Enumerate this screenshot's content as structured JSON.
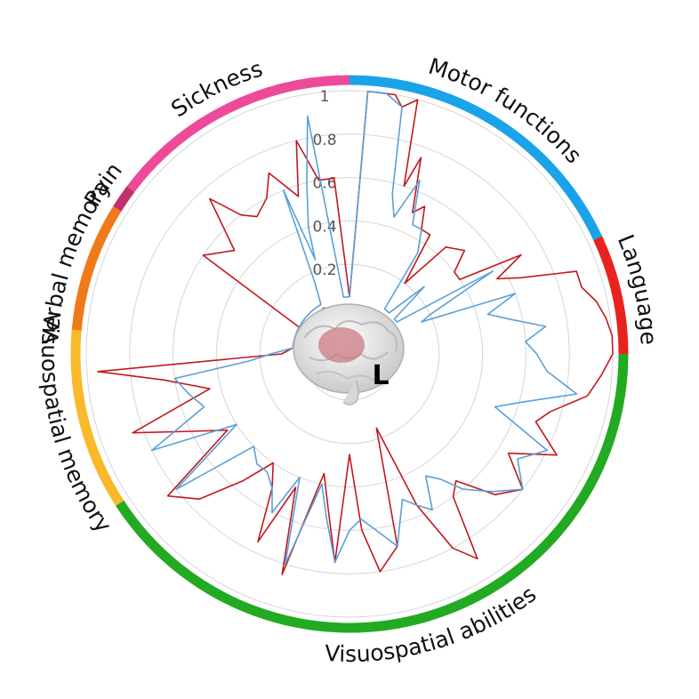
{
  "chart_data": {
    "type": "radar",
    "radial_axis": {
      "ticks": [
        "0",
        "0.2",
        "0.4",
        "0.6",
        "0.8",
        "1"
      ],
      "range": [
        0,
        1
      ]
    },
    "categories": [
      {
        "label": "Motor functions",
        "color": "#1aa3e8",
        "start_deg": 0,
        "end_deg": 65
      },
      {
        "label": "Language",
        "color": "#e8231f",
        "start_deg": 65,
        "end_deg": 90
      },
      {
        "label": "Visuospatial abilities",
        "color": "#22aa22",
        "start_deg": 90,
        "end_deg": 237
      },
      {
        "label": "Visuospatial memory",
        "color": "#f8b92a",
        "start_deg": 237,
        "end_deg": 275
      },
      {
        "label": "Verbal memory",
        "color": "#f07a1a",
        "start_deg": 275,
        "end_deg": 302
      },
      {
        "label": "Pain",
        "color": "#c0306d",
        "start_deg": 302,
        "end_deg": 307
      },
      {
        "label": "Sickness",
        "color": "#ee4a9a",
        "start_deg": 307,
        "end_deg": 360
      }
    ],
    "hemisphere_label": "L",
    "series": [
      {
        "color": "#c0191d",
        "points": [
          [
            0,
            0.05
          ],
          [
            4,
            1.0
          ],
          [
            10,
            1.0
          ],
          [
            12,
            0.95
          ],
          [
            15,
            1.0
          ],
          [
            18,
            0.6
          ],
          [
            20,
            0.75
          ],
          [
            24,
            0.5
          ],
          [
            27,
            0.55
          ],
          [
            30,
            0.45
          ],
          [
            34,
            0.45
          ],
          [
            38,
            0.2
          ],
          [
            42,
            0.45
          ],
          [
            48,
            0.5
          ],
          [
            52,
            0.4
          ],
          [
            56,
            0.4
          ],
          [
            60,
            0.7
          ],
          [
            63,
            0.55
          ],
          [
            66,
            0.65
          ],
          [
            70,
            0.9
          ],
          [
            74,
            0.9
          ],
          [
            78,
            0.95
          ],
          [
            82,
            0.98
          ],
          [
            86,
            1.0
          ],
          [
            90,
            1.0
          ],
          [
            95,
            0.95
          ],
          [
            100,
            0.9
          ],
          [
            106,
            0.75
          ],
          [
            110,
            0.7
          ],
          [
            116,
            0.85
          ],
          [
            122,
            0.65
          ],
          [
            128,
            0.8
          ],
          [
            134,
            0.72
          ],
          [
            140,
            0.55
          ],
          [
            144,
            0.6
          ],
          [
            148,
            0.9
          ],
          [
            152,
            0.8
          ],
          [
            156,
            0.55
          ],
          [
            160,
            0.15
          ],
          [
            166,
            0.7
          ],
          [
            172,
            0.8
          ],
          [
            176,
            0.6
          ],
          [
            180,
            0.25
          ],
          [
            184,
            0.75
          ],
          [
            188,
            0.5
          ],
          [
            192,
            0.35
          ],
          [
            197,
            0.85
          ],
          [
            202,
            0.45
          ],
          [
            206,
            0.75
          ],
          [
            210,
            0.5
          ],
          [
            215,
            0.4
          ],
          [
            220,
            0.55
          ],
          [
            226,
            0.75
          ],
          [
            232,
            0.85
          ],
          [
            238,
            0.45
          ],
          [
            244,
            0.6
          ],
          [
            250,
            0.85
          ],
          [
            256,
            0.45
          ],
          [
            262,
            0.65
          ],
          [
            266,
            0.95
          ],
          [
            270,
            0.1
          ],
          [
            276,
            0.05
          ],
          [
            282,
            0.05
          ],
          [
            286,
            0.05
          ],
          [
            292,
            0.05
          ],
          [
            298,
            0.05
          ],
          [
            304,
            0.6
          ],
          [
            312,
            0.5
          ],
          [
            318,
            0.75
          ],
          [
            322,
            0.6
          ],
          [
            326,
            0.55
          ],
          [
            332,
            0.6
          ],
          [
            336,
            0.7
          ],
          [
            342,
            0.55
          ],
          [
            346,
            0.8
          ],
          [
            350,
            0.6
          ],
          [
            355,
            0.6
          ],
          [
            360,
            0.05
          ]
        ]
      },
      {
        "color": "#5aa0d8",
        "points": [
          [
            0,
            0.05
          ],
          [
            4,
            1.0
          ],
          [
            8,
            1.0
          ],
          [
            12,
            0.95
          ],
          [
            15,
            0.55
          ],
          [
            18,
            0.45
          ],
          [
            22,
            0.65
          ],
          [
            26,
            0.45
          ],
          [
            30,
            0.45
          ],
          [
            34,
            0.35
          ],
          [
            38,
            0.05
          ],
          [
            44,
            0.05
          ],
          [
            48,
            0.25
          ],
          [
            52,
            0.05
          ],
          [
            56,
            0.05
          ],
          [
            60,
            0.55
          ],
          [
            64,
            0.2
          ],
          [
            66,
            0.15
          ],
          [
            70,
            0.6
          ],
          [
            74,
            0.45
          ],
          [
            78,
            0.55
          ],
          [
            82,
            0.7
          ],
          [
            86,
            0.6
          ],
          [
            90,
            0.65
          ],
          [
            95,
            0.7
          ],
          [
            100,
            0.85
          ],
          [
            106,
            0.6
          ],
          [
            110,
            0.5
          ],
          [
            116,
            0.8
          ],
          [
            122,
            0.7
          ],
          [
            128,
            0.8
          ],
          [
            134,
            0.7
          ],
          [
            140,
            0.6
          ],
          [
            144,
            0.5
          ],
          [
            148,
            0.45
          ],
          [
            152,
            0.6
          ],
          [
            156,
            0.55
          ],
          [
            160,
            0.5
          ],
          [
            166,
            0.7
          ],
          [
            172,
            0.6
          ],
          [
            176,
            0.55
          ],
          [
            180,
            0.6
          ],
          [
            184,
            0.75
          ],
          [
            188,
            0.55
          ],
          [
            192,
            0.4
          ],
          [
            197,
            0.8
          ],
          [
            202,
            0.4
          ],
          [
            206,
            0.6
          ],
          [
            210,
            0.5
          ],
          [
            215,
            0.45
          ],
          [
            220,
            0.45
          ],
          [
            226,
            0.4
          ],
          [
            232,
            0.8
          ],
          [
            238,
            0.4
          ],
          [
            244,
            0.8
          ],
          [
            250,
            0.5
          ],
          [
            256,
            0.55
          ],
          [
            262,
            0.6
          ],
          [
            266,
            0.25
          ],
          [
            270,
            0.15
          ],
          [
            276,
            0.05
          ],
          [
            282,
            0.05
          ],
          [
            286,
            0.05
          ],
          [
            292,
            0.05
          ],
          [
            298,
            0.05
          ],
          [
            304,
            0.05
          ],
          [
            310,
            0.05
          ],
          [
            318,
            0.05
          ],
          [
            324,
            0.05
          ],
          [
            330,
            0.05
          ],
          [
            334,
            0.15
          ],
          [
            338,
            0.6
          ],
          [
            340,
            0.25
          ],
          [
            342,
            0.4
          ],
          [
            346,
            0.6
          ],
          [
            350,
            0.9
          ],
          [
            354,
            0.05
          ],
          [
            360,
            0.05
          ]
        ]
      }
    ]
  }
}
